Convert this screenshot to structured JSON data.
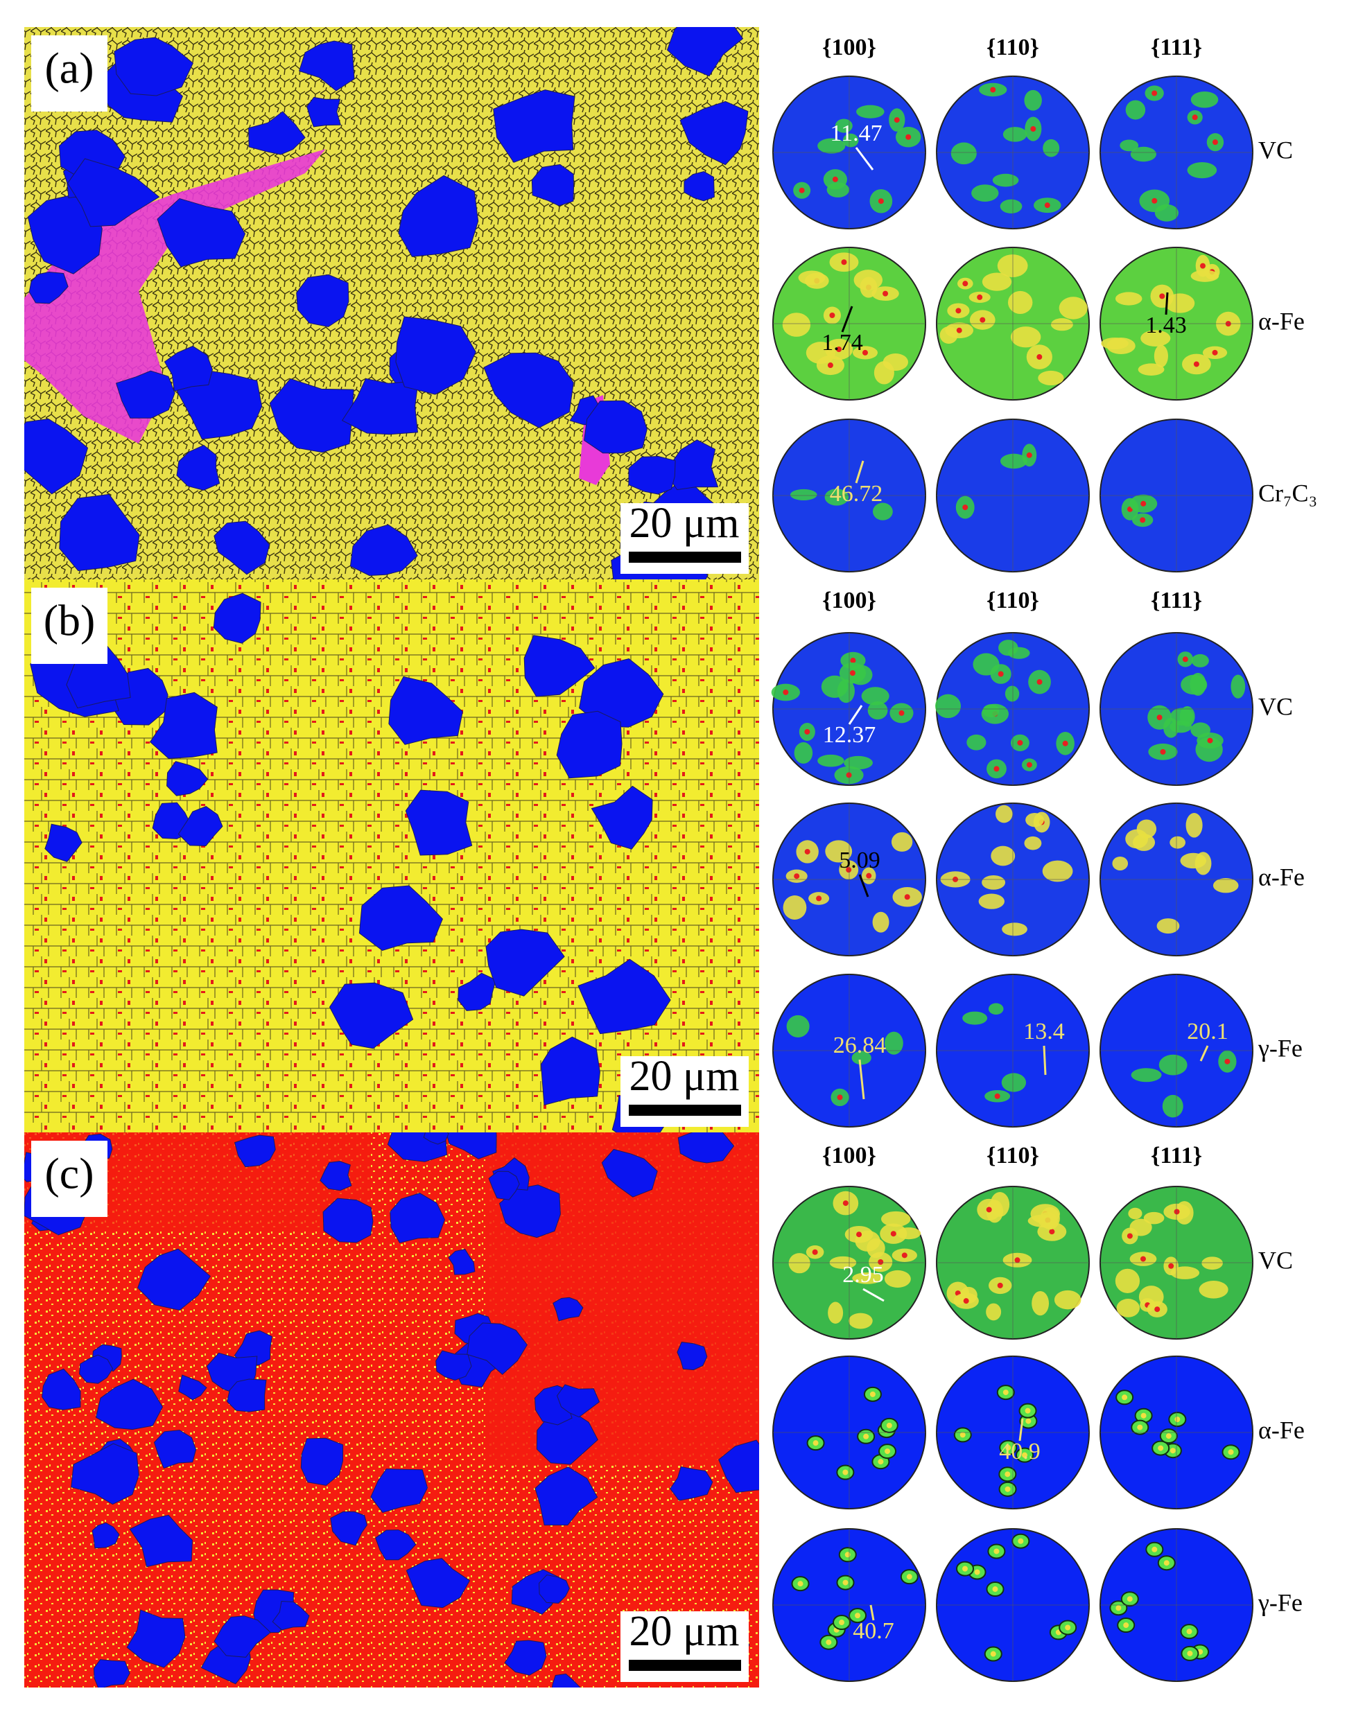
{
  "panels": [
    {
      "label": "(a)",
      "scale_bar": "20 μm",
      "headers": [
        "{100}",
        "{110}",
        "{111}"
      ],
      "phases": [
        "VC",
        "α-Fe",
        "Cr₇C₃"
      ],
      "annotations": [
        11.47,
        1.74,
        1.43,
        46.72
      ]
    },
    {
      "label": "(b)",
      "scale_bar": "20 μm",
      "headers": [
        "{100}",
        "{110}",
        "{111}"
      ],
      "phases": [
        "VC",
        "α-Fe",
        "γ-Fe"
      ],
      "annotations": [
        12.37,
        5.09,
        26.84,
        13.4,
        20.1
      ]
    },
    {
      "label": "(c)",
      "scale_bar": "20 μm",
      "headers": [
        "{100}",
        "{110}",
        "{111}"
      ],
      "phases": [
        "VC",
        "α-Fe",
        "γ-Fe"
      ],
      "annotations": [
        2.95,
        40.9,
        40.7
      ]
    }
  ]
}
